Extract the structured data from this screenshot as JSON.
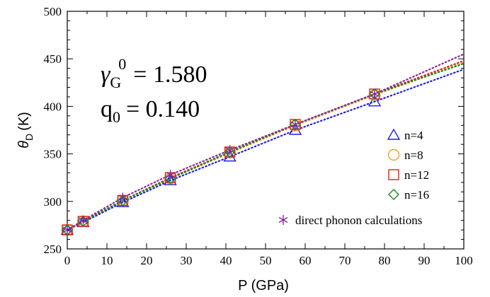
{
  "chart_data": {
    "type": "scatter",
    "xlabel": "P (GPa)",
    "ylabel_main": "θ",
    "ylabel_sub": "D",
    "ylabel_unit": "(K)",
    "xlim": [
      0,
      100
    ],
    "ylim": [
      250,
      500
    ],
    "xticks": [
      0,
      10,
      20,
      30,
      40,
      50,
      60,
      70,
      80,
      90,
      100
    ],
    "yticks": [
      250,
      300,
      350,
      400,
      450,
      500
    ],
    "grid": false,
    "legend_position": "right",
    "annotations": {
      "gamma_symbol": "γ",
      "gamma_sub": "G",
      "gamma_sup": "0",
      "gamma_value": "= 1.580",
      "q_symbol": "q",
      "q_sub": "0",
      "q_value": "= 0.140"
    },
    "series": [
      {
        "name": "n=4",
        "marker": "triangle",
        "color": "#1f1fe0",
        "x": [
          0,
          4,
          14,
          26,
          41,
          57.5,
          77.5
        ],
        "y": [
          270,
          278,
          299,
          322,
          347,
          375,
          405
        ],
        "fit_end": [
          100,
          439
        ]
      },
      {
        "name": "n=8",
        "marker": "circle",
        "color": "#f0a020",
        "x": [
          0,
          4,
          14,
          26,
          41,
          57.5,
          77.5
        ],
        "y": [
          270,
          279,
          301,
          324,
          351,
          380,
          412
        ],
        "fit_end": [
          100,
          446
        ]
      },
      {
        "name": "n=12",
        "marker": "square",
        "color": "#e02020",
        "x": [
          0,
          4,
          14,
          26,
          41,
          57.5,
          77.5
        ],
        "y": [
          270,
          279,
          301,
          325,
          352,
          381,
          413
        ],
        "fit_end": [
          100,
          448
        ]
      },
      {
        "name": "n=16",
        "marker": "diamond",
        "color": "#1a8a1a",
        "x": [
          0,
          4,
          14,
          26,
          41,
          57.5,
          77.5
        ],
        "y": [
          270,
          279,
          301,
          324,
          352,
          381,
          413
        ],
        "fit_end": [
          100,
          445
        ]
      },
      {
        "name": "direct phonon calculations",
        "marker": "asterisk",
        "color": "#8a2a9a",
        "x": [
          0,
          4,
          14,
          26,
          41,
          57.5,
          77.5
        ],
        "y": [
          270,
          280,
          304,
          328,
          354,
          381,
          413
        ],
        "fit_end": [
          100,
          455
        ]
      }
    ]
  }
}
